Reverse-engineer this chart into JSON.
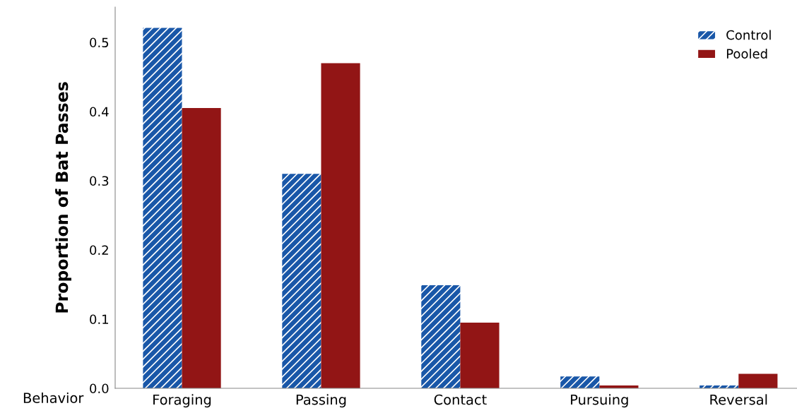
{
  "chart_data": {
    "type": "bar",
    "xlabel": "Behavior",
    "ylabel": "Proportion of Bat Passes",
    "categories": [
      "Foraging",
      "Passing",
      "Contact",
      "Pursuing",
      "Reversal"
    ],
    "series": [
      {
        "name": "Control",
        "color": "#1957a8",
        "values": [
          0.521,
          0.31,
          0.149,
          0.017,
          0.004
        ]
      },
      {
        "name": "Pooled",
        "color": "#921515",
        "values": [
          0.405,
          0.47,
          0.095,
          0.004,
          0.021
        ]
      }
    ],
    "ylim": [
      0,
      0.551
    ],
    "yticks": [
      {
        "value": 0,
        "label": "0.0"
      },
      0.1,
      0.2,
      0.3,
      0.4,
      0.5
    ],
    "grid": false,
    "legend": "top right"
  }
}
